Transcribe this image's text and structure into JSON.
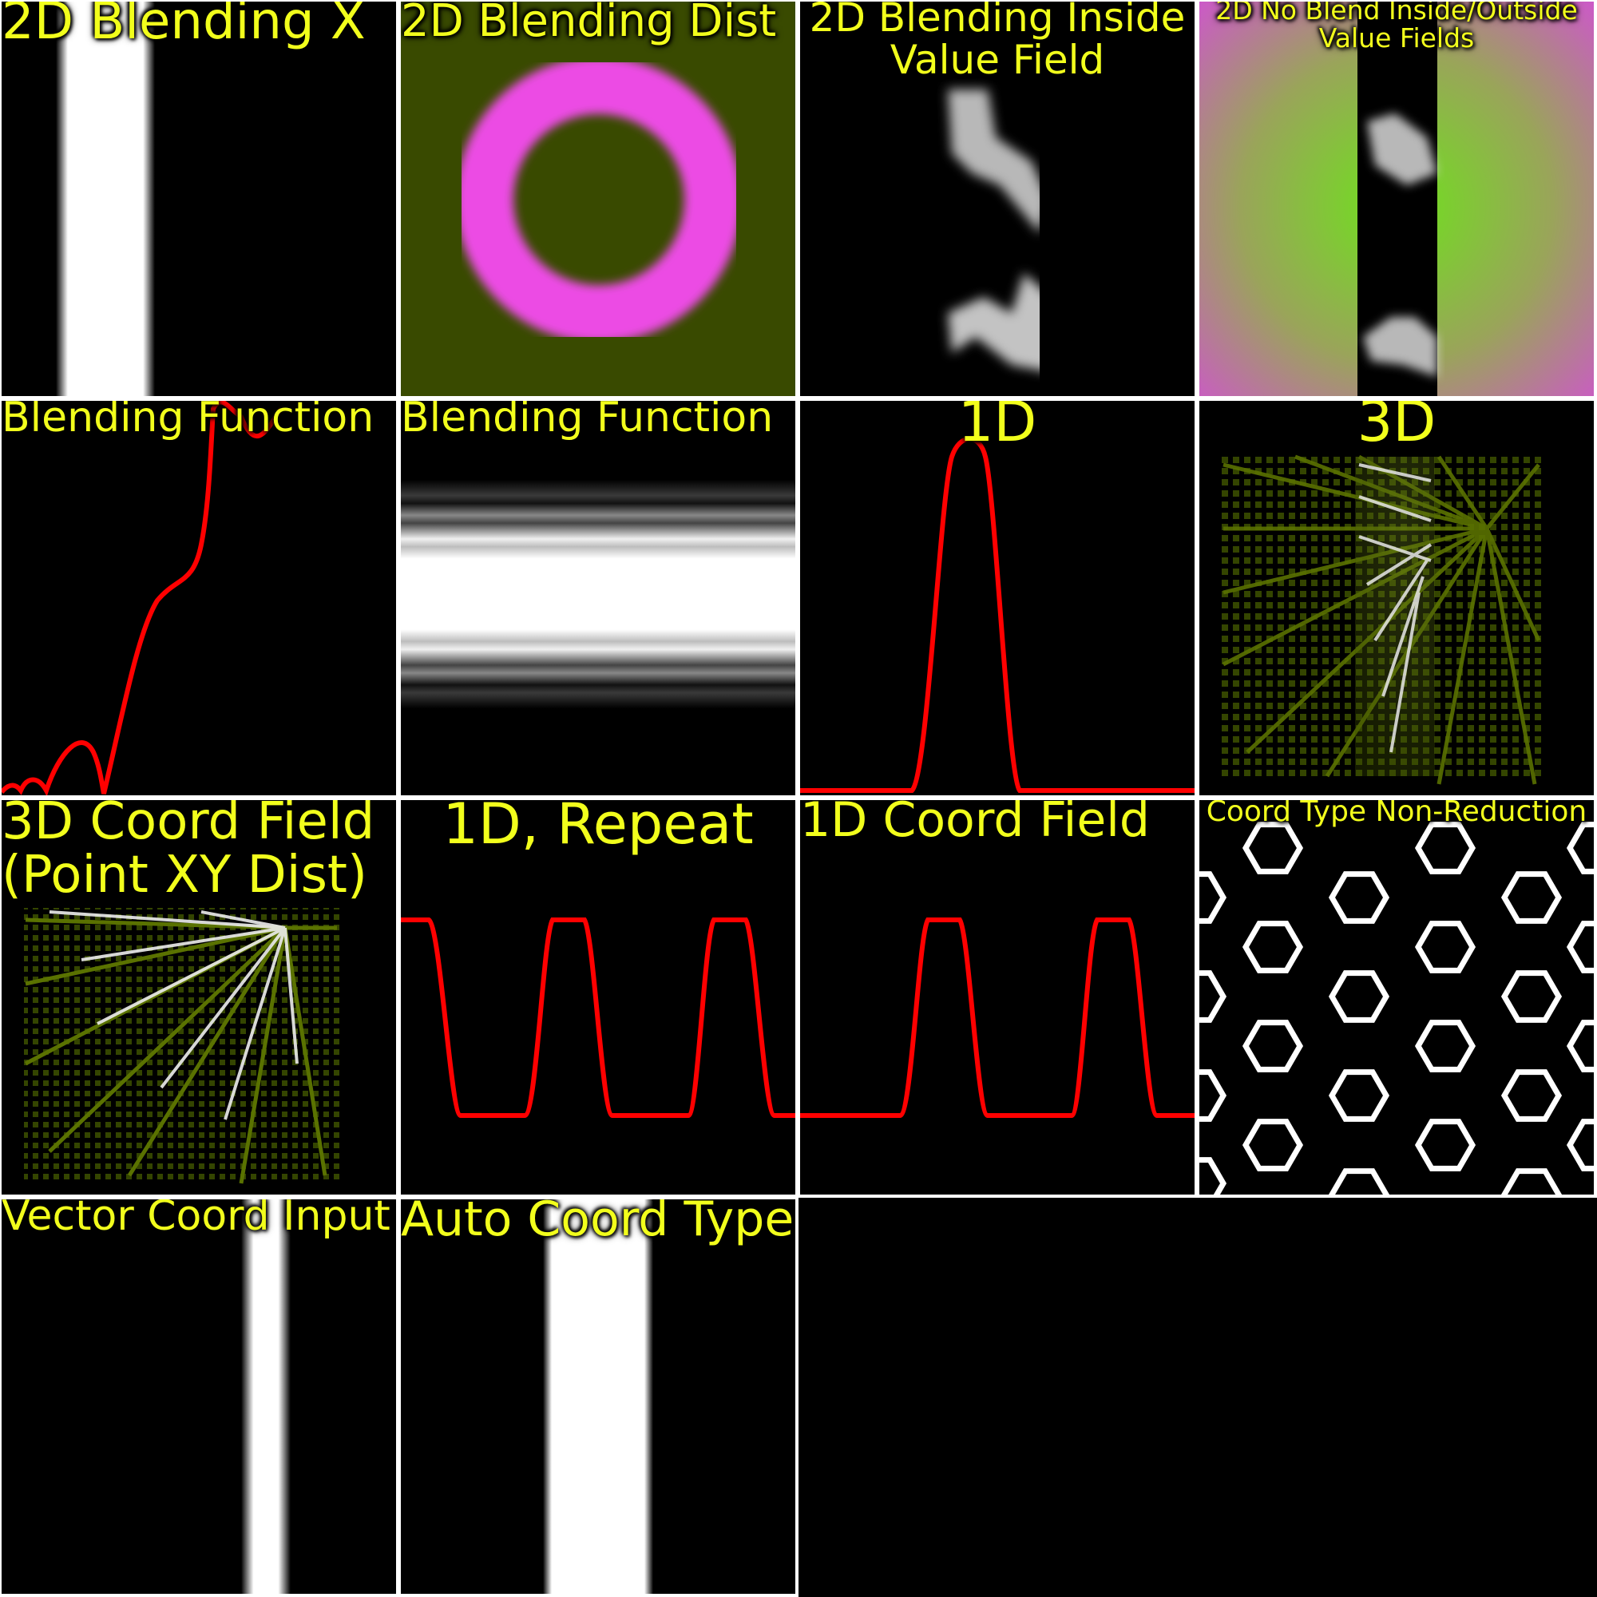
{
  "tiles": [
    {
      "id": "t1",
      "title": "2D Blending X"
    },
    {
      "id": "t2",
      "title": "2D Blending Dist"
    },
    {
      "id": "t3",
      "title": "2D Blending Inside",
      "title2": "Value Field"
    },
    {
      "id": "t4",
      "title": "2D No Blend Inside/Outside",
      "title2": "Value Fields"
    },
    {
      "id": "t5",
      "title": "Blending Function"
    },
    {
      "id": "t6",
      "title": "Blending Function"
    },
    {
      "id": "t7",
      "title": "1D"
    },
    {
      "id": "t8",
      "title": "3D"
    },
    {
      "id": "t9",
      "title": "3D Coord Field",
      "title2": "(Point XY Dist)"
    },
    {
      "id": "t10",
      "title": "1D, Repeat"
    },
    {
      "id": "t11",
      "title": "1D Coord Field"
    },
    {
      "id": "t12",
      "title": "Coord Type Non-Reduction"
    },
    {
      "id": "t13",
      "title": "Vector Coord Input"
    },
    {
      "id": "t14",
      "title": "Auto Coord Type"
    }
  ],
  "colors": {
    "title": "#f2ff1c",
    "curve": "#ff0000",
    "olive": "#394a00",
    "magenta": "#ec4be4",
    "green": "#6ee21c",
    "pink": "#cc59c8"
  }
}
